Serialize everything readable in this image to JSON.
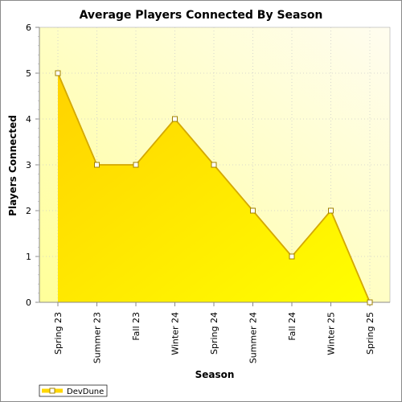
{
  "chart_data": {
    "type": "area",
    "title": "Average Players Connected By Season",
    "xlabel": "Season",
    "ylabel": "Players Connected",
    "categories": [
      "Spring 23",
      "Summer 23",
      "Fall 23",
      "Winter 24",
      "Spring 24",
      "Summer 24",
      "Fall 24",
      "Winter 25",
      "Spring 25"
    ],
    "series": [
      {
        "name": "DevDune",
        "values": [
          5,
          3,
          3,
          4,
          3,
          2,
          1,
          2,
          0
        ]
      }
    ],
    "ylim": [
      0,
      6
    ],
    "yticks": [
      "0",
      "1",
      "2",
      "3",
      "4",
      "5",
      "6"
    ],
    "grid": true,
    "legend_position": "bottom-left",
    "colors": {
      "plot_bg_top_right": "#fffce8",
      "plot_bg_bottom_left": "#ffff99",
      "area_fill_top": "#ffd700",
      "area_fill_bottom": "#ffff00",
      "area_line": "#d4a800",
      "marker_fill": "#ffffff",
      "marker_stroke": "#a08000",
      "grid": "#cccccc"
    }
  }
}
